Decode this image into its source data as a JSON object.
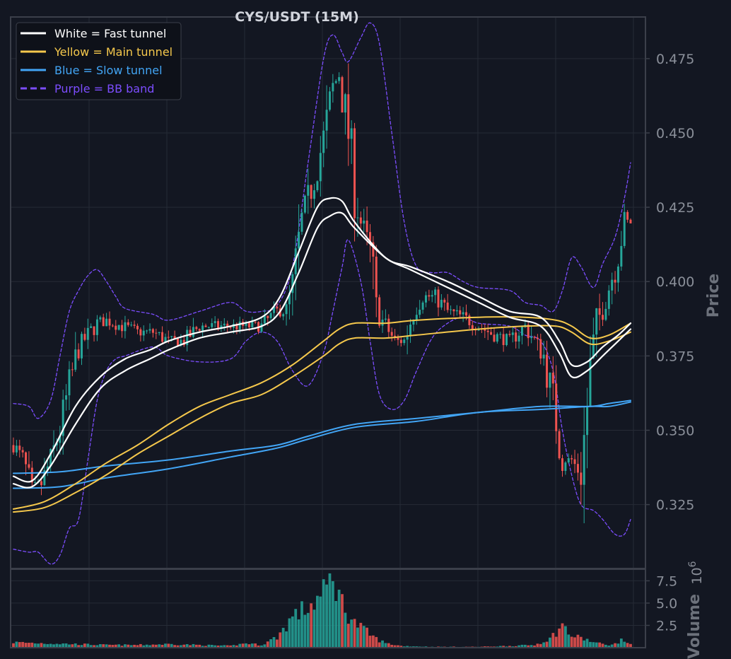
{
  "chart_data": {
    "type": "line",
    "title": "CYS/USDT (15M)",
    "ylabel": "Price",
    "volume_label": "Volume",
    "volume_exponent": "10",
    "volume_exponent_power": "6",
    "ylim": [
      0.3035,
      0.489
    ],
    "yticks": [
      "0.325",
      "0.350",
      "0.375",
      "0.400",
      "0.425",
      "0.450",
      "0.475"
    ],
    "volume_ylim": [
      0,
      8.8
    ],
    "volume_yticks": [
      "2.5",
      "5.0",
      "7.5"
    ],
    "grid": true,
    "legend_position": "top-left",
    "colors": {
      "background": "#131722",
      "grid": "#262b36",
      "frame": "#3b3f4a",
      "up": "#26a69a",
      "down": "#ef5350",
      "white": "#ffffff",
      "yellow": "#f5c84c",
      "blue": "#42a5f5",
      "purple": "#7c4dff"
    },
    "legend": [
      {
        "label": "White = Fast tunnel",
        "color": "#ffffff",
        "dashed": false
      },
      {
        "label": "Yellow = Main tunnel",
        "color": "#f5c84c",
        "dashed": false
      },
      {
        "label": "Blue = Slow tunnel",
        "color": "#42a5f5",
        "dashed": false
      },
      {
        "label": "Purple = BB band",
        "color": "#7c4dff",
        "dashed": true
      }
    ],
    "bar_count": 200,
    "close_anchors": [
      [
        0,
        0.345
      ],
      [
        3,
        0.34
      ],
      [
        6,
        0.33
      ],
      [
        9,
        0.332
      ],
      [
        12,
        0.34
      ],
      [
        15,
        0.35
      ],
      [
        18,
        0.365
      ],
      [
        21,
        0.378
      ],
      [
        24,
        0.382
      ],
      [
        27,
        0.386
      ],
      [
        30,
        0.387
      ],
      [
        35,
        0.385
      ],
      [
        40,
        0.383
      ],
      [
        45,
        0.383
      ],
      [
        50,
        0.38
      ],
      [
        55,
        0.38
      ],
      [
        60,
        0.385
      ],
      [
        70,
        0.385
      ],
      [
        75,
        0.385
      ],
      [
        80,
        0.385
      ],
      [
        85,
        0.39
      ],
      [
        88,
        0.39
      ],
      [
        90,
        0.398
      ],
      [
        93,
        0.42
      ],
      [
        97,
        0.435
      ],
      [
        100,
        0.448
      ],
      [
        103,
        0.465
      ],
      [
        105,
        0.47
      ],
      [
        108,
        0.45
      ],
      [
        110,
        0.43
      ],
      [
        112,
        0.42
      ],
      [
        115,
        0.41
      ],
      [
        117,
        0.39
      ],
      [
        120,
        0.385
      ],
      [
        123,
        0.38
      ],
      [
        126,
        0.38
      ],
      [
        129,
        0.39
      ],
      [
        132,
        0.395
      ],
      [
        136,
        0.395
      ],
      [
        140,
        0.39
      ],
      [
        145,
        0.388
      ],
      [
        150,
        0.385
      ],
      [
        155,
        0.382
      ],
      [
        160,
        0.38
      ],
      [
        165,
        0.385
      ],
      [
        168,
        0.38
      ],
      [
        171,
        0.375
      ],
      [
        174,
        0.36
      ],
      [
        177,
        0.34
      ],
      [
        180,
        0.34
      ],
      [
        183,
        0.335
      ],
      [
        186,
        0.37
      ],
      [
        188,
        0.385
      ],
      [
        191,
        0.395
      ],
      [
        194,
        0.405
      ],
      [
        197,
        0.42
      ],
      [
        199,
        0.42
      ]
    ],
    "volume_anchors": [
      [
        0,
        0.6
      ],
      [
        10,
        0.5
      ],
      [
        20,
        0.4
      ],
      [
        30,
        0.3
      ],
      [
        40,
        0.3
      ],
      [
        50,
        0.4
      ],
      [
        60,
        0.3
      ],
      [
        70,
        0.2
      ],
      [
        75,
        0.5
      ],
      [
        80,
        0.3
      ],
      [
        85,
        1.2
      ],
      [
        88,
        2.5
      ],
      [
        90,
        3.5
      ],
      [
        95,
        4.5
      ],
      [
        100,
        6
      ],
      [
        103,
        8
      ],
      [
        106,
        5
      ],
      [
        108,
        3.8
      ],
      [
        110,
        2.8
      ],
      [
        113,
        2.0
      ],
      [
        117,
        1.0
      ],
      [
        120,
        0.5
      ],
      [
        125,
        0.2
      ],
      [
        135,
        0.1
      ],
      [
        150,
        0.1
      ],
      [
        160,
        0.2
      ],
      [
        168,
        0.3
      ],
      [
        173,
        1.0
      ],
      [
        177,
        2.5
      ],
      [
        180,
        1.3
      ],
      [
        184,
        1.0
      ],
      [
        187,
        0.6
      ],
      [
        190,
        0.4
      ],
      [
        193,
        0.3
      ],
      [
        196,
        0.8
      ],
      [
        199,
        0.5
      ]
    ],
    "fast_tunnel": {
      "upper": [
        [
          0,
          0.3345
        ],
        [
          6,
          0.333
        ],
        [
          12,
          0.342
        ],
        [
          20,
          0.358
        ],
        [
          28,
          0.368
        ],
        [
          36,
          0.374
        ],
        [
          44,
          0.377
        ],
        [
          50,
          0.38
        ],
        [
          60,
          0.383
        ],
        [
          70,
          0.385
        ],
        [
          80,
          0.388
        ],
        [
          86,
          0.395
        ],
        [
          92,
          0.41
        ],
        [
          98,
          0.425
        ],
        [
          102,
          0.428
        ],
        [
          106,
          0.427
        ],
        [
          110,
          0.42
        ],
        [
          120,
          0.408
        ],
        [
          128,
          0.405
        ],
        [
          140,
          0.4
        ],
        [
          150,
          0.395
        ],
        [
          160,
          0.39
        ],
        [
          170,
          0.388
        ],
        [
          176,
          0.38
        ],
        [
          180,
          0.372
        ],
        [
          185,
          0.373
        ],
        [
          190,
          0.378
        ],
        [
          195,
          0.382
        ],
        [
          199,
          0.386
        ]
      ],
      "lower": [
        [
          0,
          0.332
        ],
        [
          6,
          0.331
        ],
        [
          12,
          0.338
        ],
        [
          20,
          0.352
        ],
        [
          28,
          0.364
        ],
        [
          36,
          0.37
        ],
        [
          44,
          0.374
        ],
        [
          50,
          0.377
        ],
        [
          60,
          0.381
        ],
        [
          70,
          0.383
        ],
        [
          80,
          0.385
        ],
        [
          86,
          0.39
        ],
        [
          92,
          0.403
        ],
        [
          98,
          0.418
        ],
        [
          102,
          0.422
        ],
        [
          106,
          0.423
        ],
        [
          110,
          0.418
        ],
        [
          120,
          0.408
        ],
        [
          128,
          0.404
        ],
        [
          140,
          0.398
        ],
        [
          150,
          0.393
        ],
        [
          160,
          0.388
        ],
        [
          170,
          0.385
        ],
        [
          176,
          0.376
        ],
        [
          180,
          0.368
        ],
        [
          185,
          0.37
        ],
        [
          190,
          0.375
        ],
        [
          195,
          0.38
        ],
        [
          199,
          0.384
        ]
      ]
    },
    "main_tunnel": {
      "upper": [
        [
          0,
          0.3235
        ],
        [
          10,
          0.326
        ],
        [
          20,
          0.332
        ],
        [
          30,
          0.339
        ],
        [
          40,
          0.345
        ],
        [
          50,
          0.352
        ],
        [
          60,
          0.358
        ],
        [
          70,
          0.362
        ],
        [
          80,
          0.366
        ],
        [
          90,
          0.372
        ],
        [
          100,
          0.38
        ],
        [
          105,
          0.384
        ],
        [
          110,
          0.386
        ],
        [
          120,
          0.386
        ],
        [
          130,
          0.387
        ],
        [
          150,
          0.388
        ],
        [
          165,
          0.388
        ],
        [
          175,
          0.387
        ],
        [
          180,
          0.385
        ],
        [
          186,
          0.381
        ],
        [
          192,
          0.382
        ],
        [
          199,
          0.386
        ]
      ],
      "lower": [
        [
          0,
          0.3225
        ],
        [
          10,
          0.324
        ],
        [
          20,
          0.329
        ],
        [
          30,
          0.335
        ],
        [
          40,
          0.342
        ],
        [
          50,
          0.348
        ],
        [
          60,
          0.354
        ],
        [
          70,
          0.359
        ],
        [
          80,
          0.362
        ],
        [
          90,
          0.368
        ],
        [
          100,
          0.375
        ],
        [
          105,
          0.379
        ],
        [
          110,
          0.381
        ],
        [
          120,
          0.381
        ],
        [
          130,
          0.382
        ],
        [
          150,
          0.384
        ],
        [
          165,
          0.385
        ],
        [
          175,
          0.385
        ],
        [
          180,
          0.383
        ],
        [
          186,
          0.379
        ],
        [
          192,
          0.38
        ],
        [
          199,
          0.383
        ]
      ]
    },
    "slow_tunnel": {
      "upper": [
        [
          0,
          0.3355
        ],
        [
          15,
          0.336
        ],
        [
          30,
          0.338
        ],
        [
          50,
          0.34
        ],
        [
          70,
          0.343
        ],
        [
          85,
          0.345
        ],
        [
          95,
          0.348
        ],
        [
          110,
          0.352
        ],
        [
          130,
          0.354
        ],
        [
          150,
          0.356
        ],
        [
          170,
          0.358
        ],
        [
          186,
          0.358
        ],
        [
          192,
          0.359
        ],
        [
          199,
          0.36
        ]
      ],
      "lower": [
        [
          0,
          0.3305
        ],
        [
          15,
          0.331
        ],
        [
          30,
          0.334
        ],
        [
          50,
          0.337
        ],
        [
          70,
          0.341
        ],
        [
          85,
          0.344
        ],
        [
          95,
          0.347
        ],
        [
          110,
          0.351
        ],
        [
          130,
          0.353
        ],
        [
          150,
          0.356
        ],
        [
          170,
          0.357
        ],
        [
          186,
          0.358
        ],
        [
          192,
          0.358
        ],
        [
          199,
          0.3595
        ]
      ]
    },
    "bb_band": {
      "upper": [
        [
          0,
          0.359
        ],
        [
          5,
          0.358
        ],
        [
          8,
          0.354
        ],
        [
          12,
          0.36
        ],
        [
          15,
          0.375
        ],
        [
          18,
          0.39
        ],
        [
          21,
          0.397
        ],
        [
          24,
          0.402
        ],
        [
          27,
          0.404
        ],
        [
          30,
          0.4
        ],
        [
          33,
          0.395
        ],
        [
          36,
          0.391
        ],
        [
          45,
          0.389
        ],
        [
          50,
          0.387
        ],
        [
          60,
          0.39
        ],
        [
          70,
          0.393
        ],
        [
          75,
          0.39
        ],
        [
          80,
          0.39
        ],
        [
          85,
          0.392
        ],
        [
          90,
          0.405
        ],
        [
          95,
          0.44
        ],
        [
          100,
          0.475
        ],
        [
          103,
          0.483
        ],
        [
          106,
          0.477
        ],
        [
          108,
          0.474
        ],
        [
          112,
          0.482
        ],
        [
          115,
          0.487
        ],
        [
          118,
          0.48
        ],
        [
          122,
          0.45
        ],
        [
          126,
          0.42
        ],
        [
          130,
          0.405
        ],
        [
          135,
          0.403
        ],
        [
          140,
          0.403
        ],
        [
          145,
          0.4
        ],
        [
          150,
          0.398
        ],
        [
          160,
          0.397
        ],
        [
          165,
          0.393
        ],
        [
          170,
          0.392
        ],
        [
          174,
          0.39
        ],
        [
          177,
          0.397
        ],
        [
          180,
          0.408
        ],
        [
          183,
          0.405
        ],
        [
          187,
          0.398
        ],
        [
          190,
          0.406
        ],
        [
          194,
          0.415
        ],
        [
          197,
          0.428
        ],
        [
          199,
          0.44
        ]
      ],
      "lower": [
        [
          0,
          0.31
        ],
        [
          5,
          0.309
        ],
        [
          8,
          0.309
        ],
        [
          12,
          0.305
        ],
        [
          15,
          0.308
        ],
        [
          18,
          0.317
        ],
        [
          21,
          0.32
        ],
        [
          24,
          0.34
        ],
        [
          27,
          0.36
        ],
        [
          30,
          0.37
        ],
        [
          33,
          0.374
        ],
        [
          36,
          0.375
        ],
        [
          45,
          0.378
        ],
        [
          50,
          0.375
        ],
        [
          60,
          0.373
        ],
        [
          70,
          0.374
        ],
        [
          75,
          0.38
        ],
        [
          80,
          0.383
        ],
        [
          85,
          0.38
        ],
        [
          90,
          0.37
        ],
        [
          95,
          0.365
        ],
        [
          100,
          0.376
        ],
        [
          103,
          0.39
        ],
        [
          106,
          0.405
        ],
        [
          108,
          0.414
        ],
        [
          112,
          0.4
        ],
        [
          115,
          0.38
        ],
        [
          118,
          0.362
        ],
        [
          122,
          0.357
        ],
        [
          126,
          0.36
        ],
        [
          130,
          0.37
        ],
        [
          135,
          0.381
        ],
        [
          140,
          0.386
        ],
        [
          145,
          0.388
        ],
        [
          150,
          0.386
        ],
        [
          160,
          0.385
        ],
        [
          165,
          0.382
        ],
        [
          170,
          0.38
        ],
        [
          174,
          0.37
        ],
        [
          177,
          0.35
        ],
        [
          180,
          0.335
        ],
        [
          183,
          0.325
        ],
        [
          187,
          0.323
        ],
        [
          190,
          0.32
        ],
        [
          194,
          0.315
        ],
        [
          197,
          0.315
        ],
        [
          199,
          0.32
        ]
      ]
    }
  }
}
